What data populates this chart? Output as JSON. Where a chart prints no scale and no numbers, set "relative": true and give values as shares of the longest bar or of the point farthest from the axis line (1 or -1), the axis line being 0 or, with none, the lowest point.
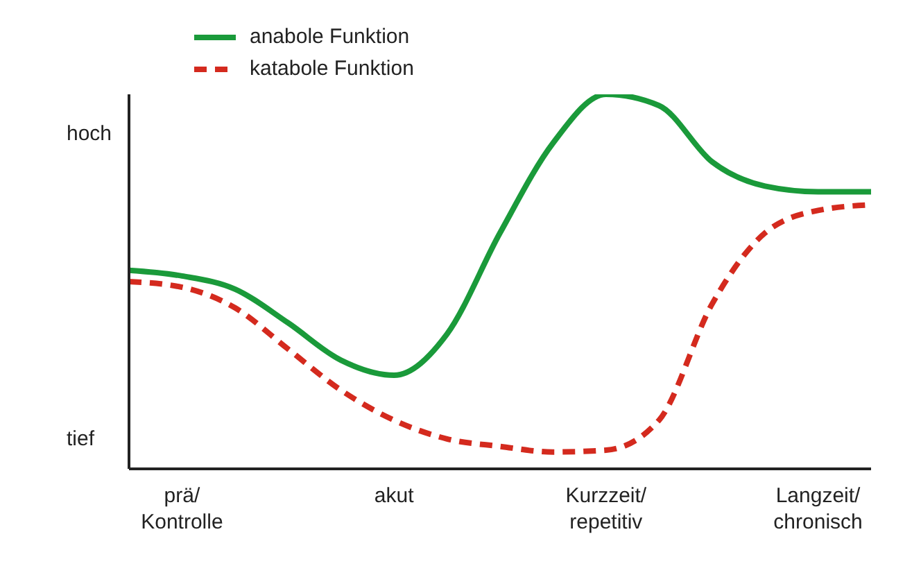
{
  "chart_data": {
    "type": "line",
    "relative": true,
    "legend": "top left",
    "marker": "none",
    "grid": false,
    "categories": [
      null,
      "prä/\nKontrolle",
      null,
      null,
      null,
      "akut",
      null,
      null,
      null,
      "Kurzzeit/\nrepetitiv",
      null,
      null,
      null,
      "Langzeit/\nchronisch",
      null
    ],
    "annotations": [
      "hoch",
      "tief"
    ],
    "series": [
      {
        "name": "anabole Funktion",
        "color": "#1a9a3a",
        "line_style": "solid",
        "values": [
          0.53,
          0.515,
          0.48,
          0.39,
          0.29,
          0.25,
          0.36,
          0.63,
          0.87,
          1,
          0.97,
          0.82,
          0.755,
          0.74,
          0.74
        ]
      },
      {
        "name": "katabole Funktion",
        "color": "#d42a1e",
        "line_style": "dashed",
        "values": [
          0.5,
          0.485,
          0.43,
          0.32,
          0.21,
          0.13,
          0.08,
          0.06,
          0.045,
          0.05,
          0.13,
          0.44,
          0.63,
          0.69,
          0.705
        ]
      }
    ]
  }
}
